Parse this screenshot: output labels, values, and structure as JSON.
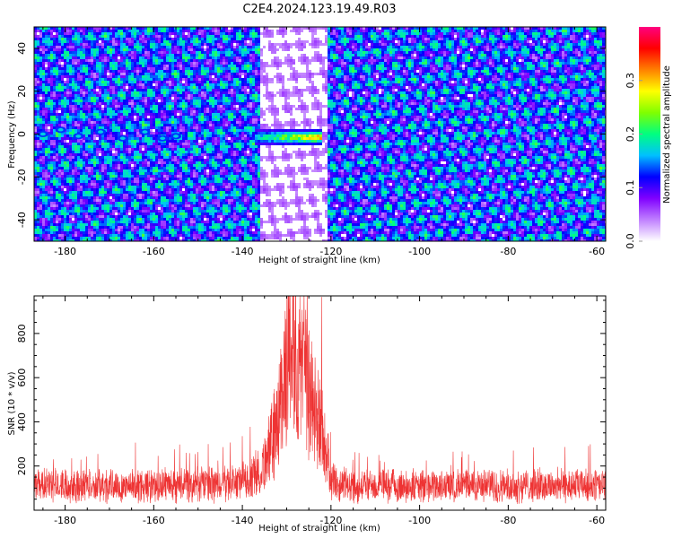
{
  "title": "C2E4.2024.123.19.49.R03",
  "chart_data": [
    {
      "type": "heatmap",
      "xlabel": "Height of straight line (km)",
      "ylabel": "Frequency (Hz)",
      "xlim": [
        -187,
        -58
      ],
      "ylim": [
        -50,
        50
      ],
      "x_ticks": [
        -180,
        -160,
        -140,
        -120,
        -100,
        -80,
        -60
      ],
      "y_ticks": [
        -40,
        -20,
        0,
        20,
        40
      ],
      "colorbar": {
        "label": "Normalized spectral amplitude",
        "range": [
          0,
          0.4
        ],
        "ticks": [
          0.0,
          0.1,
          0.2,
          0.3
        ],
        "tick_labels": [
          "0.0",
          "0.1",
          "0.2",
          "0.3"
        ],
        "colormap": [
          "#ffffff",
          "#c080ff",
          "#8000ff",
          "#0000ff",
          "#00c0ff",
          "#00ff80",
          "#80ff00",
          "#ffff00",
          "#ff8000",
          "#ff0000",
          "#ff0080"
        ]
      },
      "features": [
        {
          "kind": "bright band",
          "x_range": [
            -137,
            -122
          ],
          "y_center": -1.5,
          "peak_value": 0.38
        },
        {
          "kind": "low amplitude gap",
          "x_range": [
            -136,
            -121
          ]
        },
        {
          "kind": "spots near 0 Hz",
          "x": [
            -185,
            -181,
            -177,
            -172,
            -167,
            -162,
            -158,
            -155
          ],
          "y": [
            0,
            2,
            -1,
            1,
            -2,
            1,
            -2,
            -1
          ]
        }
      ]
    },
    {
      "type": "line",
      "xlabel": "Height of straight line (km)",
      "ylabel": "SNR (10 * v/v)",
      "xlim": [
        -187,
        -58
      ],
      "ylim": [
        0,
        970
      ],
      "x_ticks": [
        -180,
        -160,
        -140,
        -120,
        -100,
        -80,
        -60
      ],
      "y_ticks": [
        200,
        400,
        600,
        800
      ],
      "grid": false,
      "series": [
        {
          "color": "#ee3333",
          "x": [
            -187,
            -180,
            -170,
            -160,
            -150,
            -145,
            -140,
            -136,
            -133,
            -131,
            -130,
            -129,
            -128,
            -127,
            -126,
            -125,
            -124,
            -123,
            -122,
            -121,
            -120,
            -118,
            -115,
            -110,
            -100,
            -90,
            -80,
            -70,
            -60,
            -58
          ],
          "y": [
            130,
            135,
            130,
            132,
            135,
            140,
            150,
            200,
            380,
            600,
            820,
            960,
            880,
            650,
            700,
            620,
            560,
            500,
            420,
            300,
            160,
            140,
            130,
            130,
            128,
            130,
            130,
            130,
            130,
            130
          ]
        }
      ]
    }
  ]
}
